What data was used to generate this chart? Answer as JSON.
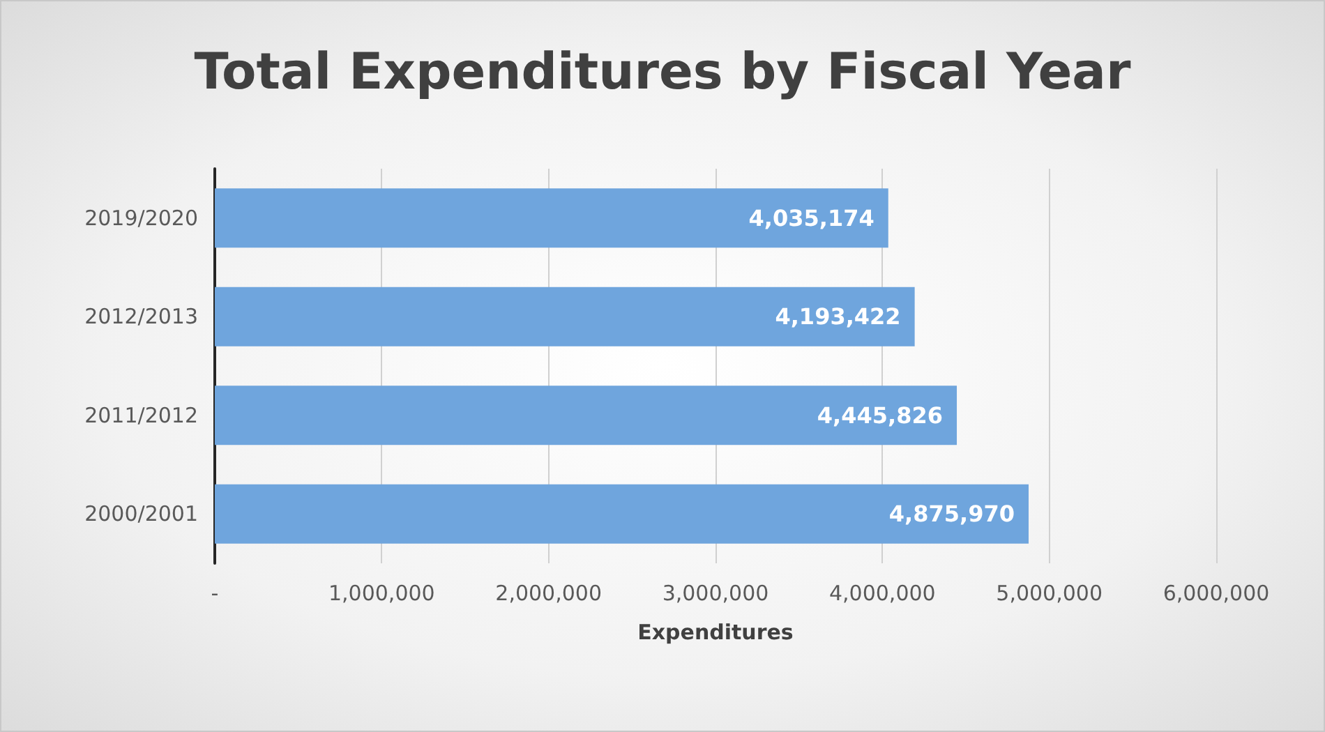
{
  "chart_data": {
    "type": "bar",
    "orientation": "horizontal",
    "title": "Total Expenditures by Fiscal Year",
    "xlabel": "Expenditures",
    "categories": [
      "2019/2020",
      "2012/2013",
      "2011/2012",
      "2000/2001"
    ],
    "values": [
      4035174,
      4193422,
      4445826,
      4875970
    ],
    "value_labels": [
      "4,035,174",
      "4,193,422",
      "4,445,826",
      "4,875,970"
    ],
    "color": "#6fa5dd",
    "xlim": [
      0,
      6000000
    ],
    "xticks": [
      {
        "value": 0,
        "label": "-"
      },
      {
        "value": 1000000,
        "label": "1,000,000"
      },
      {
        "value": 2000000,
        "label": "2,000,000"
      },
      {
        "value": 3000000,
        "label": "3,000,000"
      },
      {
        "value": 4000000,
        "label": "4,000,000"
      },
      {
        "value": 5000000,
        "label": "5,000,000"
      },
      {
        "value": 6000000,
        "label": "6,000,000"
      }
    ],
    "grid": "x"
  }
}
